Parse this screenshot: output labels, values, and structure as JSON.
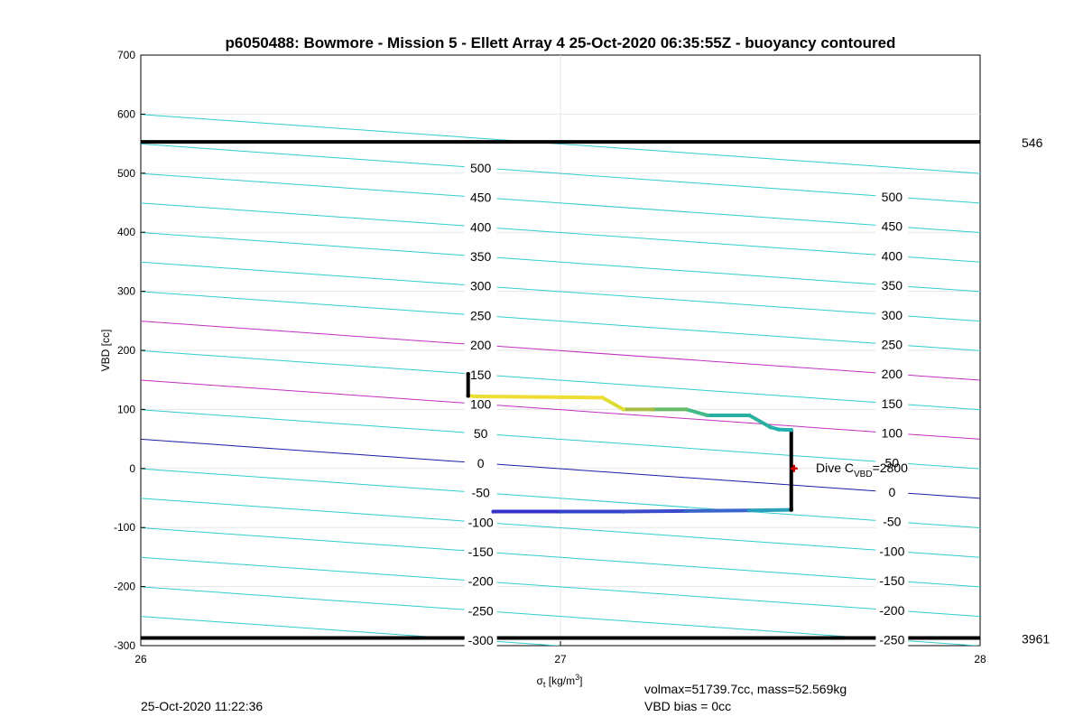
{
  "chart_data": {
    "type": "scatter",
    "title": "p6050488: Bowmore - Mission 5 - Ellett Array 4 25-Oct-2020 06:35:55Z - buoyancy contoured",
    "xlabel": "σt [kg/m³]",
    "ylabel": "VBD [cc]",
    "xlim": [
      26,
      28
    ],
    "ylim": [
      -300,
      700
    ],
    "x_ticks": [
      "26",
      "27",
      "28"
    ],
    "y_ticks": [
      "700",
      "600",
      "500",
      "400",
      "300",
      "200",
      "100",
      "0",
      "-100",
      "-200",
      "-300"
    ],
    "grid": true,
    "vbd_limits": [
      {
        "y": 553,
        "label": "546"
      },
      {
        "y": -287,
        "label": "3961"
      }
    ],
    "buoyancy_contours": {
      "levels": [
        -300,
        -250,
        -200,
        -150,
        -100,
        -50,
        0,
        50,
        100,
        150,
        200,
        250,
        300,
        350,
        400,
        450,
        500
      ],
      "slope_cc_per_sigma": -50,
      "highlight_levels": [
        {
          "level": 0,
          "color": "#1a1aa8"
        },
        {
          "level": 100,
          "color": "#c030c0"
        },
        {
          "level": 200,
          "color": "#c030c0"
        }
      ],
      "default_color": "#33cccc",
      "left_labels": [
        "500",
        "450",
        "400",
        "350",
        "300",
        "250",
        "200",
        "150",
        "100",
        "50",
        "0",
        "-50",
        "-100",
        "-150",
        "-200",
        "-250",
        "-300"
      ],
      "right_labels": [
        "500",
        "450",
        "400",
        "350",
        "300",
        "250",
        "200",
        "150",
        "100",
        "50",
        "0",
        "-50",
        "-100",
        "-150",
        "-200",
        "-250"
      ]
    },
    "dive_trace": {
      "segments": [
        {
          "x": [
            26.84,
            27.0,
            27.15,
            27.3,
            27.45,
            27.55
          ],
          "y": [
            -73,
            -73,
            -73,
            -72,
            -71,
            -70
          ],
          "colors": [
            "#3333cc",
            "#3344cc",
            "#3a4ccc",
            "#3a66cc",
            "#2aa0bb",
            "#22b0b0"
          ]
        },
        {
          "x": [
            27.55,
            27.55
          ],
          "y": [
            -70,
            65
          ],
          "colors": [
            "#000000"
          ]
        },
        {
          "x": [
            27.55,
            27.52,
            27.5,
            27.45,
            27.35,
            27.3,
            27.22,
            27.15,
            27.1,
            26.95,
            26.8,
            26.78
          ],
          "y": [
            65,
            66,
            70,
            90,
            90,
            100,
            100,
            100,
            120,
            121,
            122,
            123
          ],
          "colors": [
            "#22b0b0",
            "#22b0b0",
            "#2ab0a0",
            "#2ab0a0",
            "#44bb88",
            "#66bb66",
            "#aabb44",
            "#dddd33",
            "#eedd33",
            "#eedd33",
            "#eedd33",
            "#eedd33"
          ]
        },
        {
          "x": [
            26.78,
            26.78
          ],
          "y": [
            123,
            160
          ],
          "colors": [
            "#000000"
          ]
        }
      ],
      "dive_c_vbd": {
        "x": 27.55,
        "y": 0,
        "marker_color": "#cc0000",
        "label_base": "Dive C",
        "label_sub": "VBD",
        "label_value": "=2800"
      }
    }
  },
  "footer": {
    "timestamp": "25-Oct-2020 11:22:36",
    "volmax_mass": "volmax=51739.7cc, mass=52.569kg",
    "vbd_bias": "VBD bias = 0cc"
  }
}
